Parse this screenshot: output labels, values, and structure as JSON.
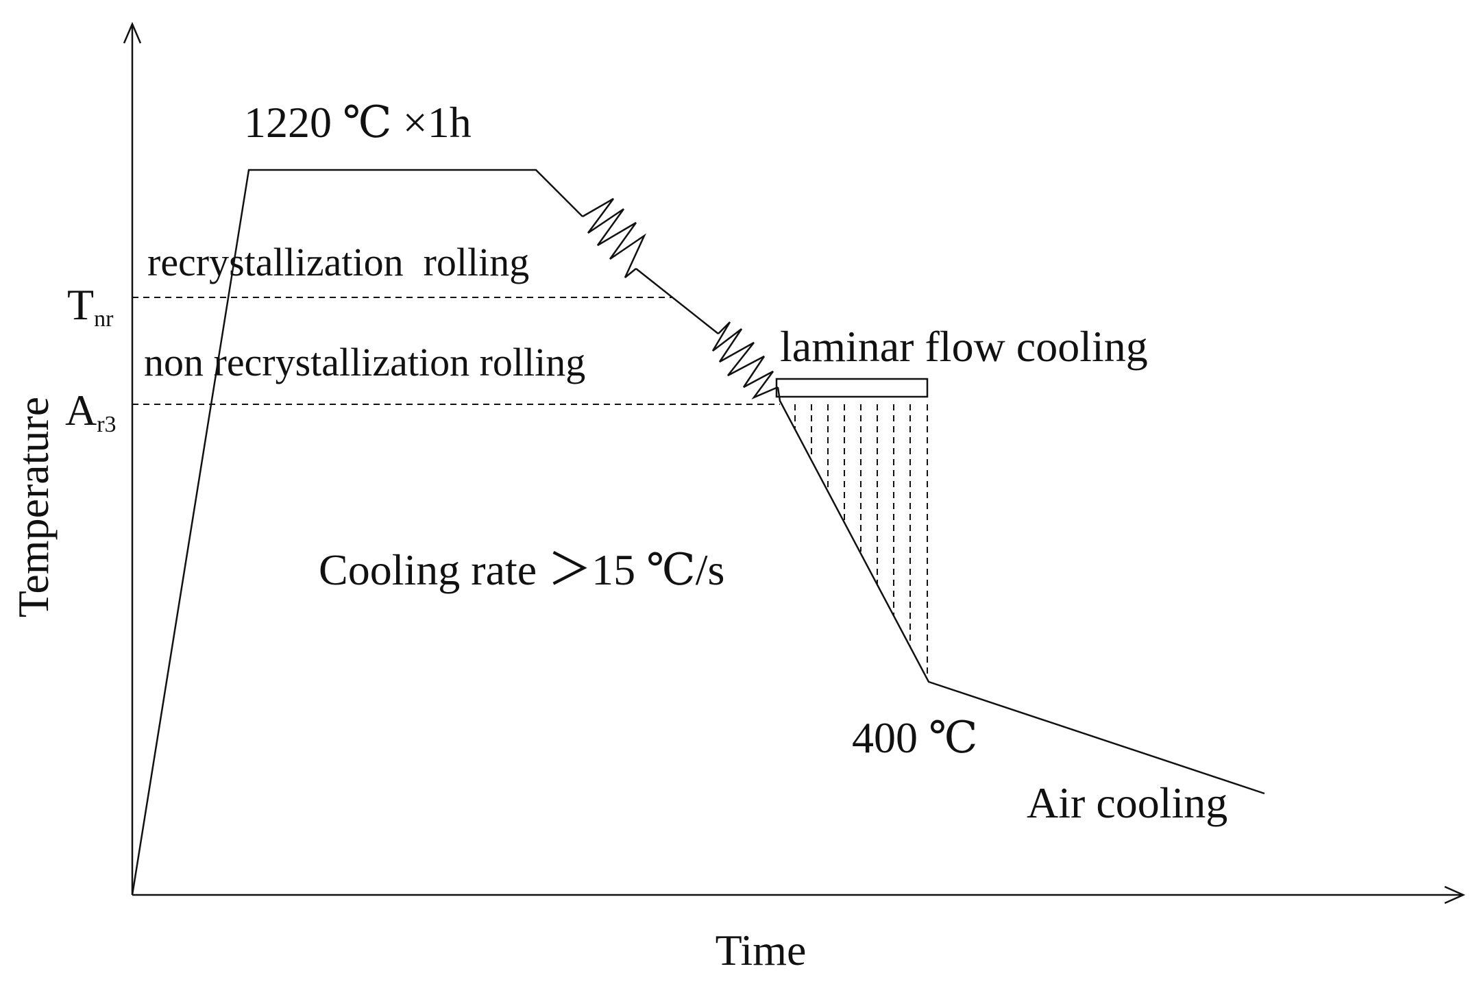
{
  "axes": {
    "x_label": "Time",
    "y_label": "Temperature"
  },
  "levels": {
    "tnr_main": "T",
    "tnr_sub": "nr",
    "ar3_main": "A",
    "ar3_sub": "r3"
  },
  "annotations": {
    "soak": "1220 ℃ ×1h",
    "recryst_rolling": "recrystallization  rolling",
    "non_recryst_rolling": "non recrystallization rolling",
    "laminar_cooling": "laminar flow cooling",
    "cooling_rate": "Cooling rate ＞15 ℃/s",
    "end_temp": "400 ℃",
    "air_cooling": "Air cooling"
  }
}
